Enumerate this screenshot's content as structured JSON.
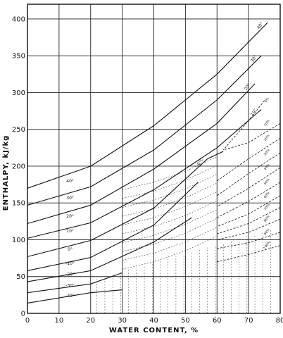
{
  "chart_data": {
    "type": "line",
    "title": "",
    "xlabel": "WATER CONTENT, %",
    "ylabel": "ENTHALPY, kJ/kg",
    "xlim": [
      0,
      80
    ],
    "ylim": [
      0,
      420
    ],
    "x_ticks": [
      0,
      10,
      20,
      30,
      40,
      50,
      60,
      70,
      80
    ],
    "y_ticks": [
      0,
      50,
      100,
      150,
      200,
      250,
      300,
      350,
      400
    ],
    "grid": true,
    "temperature_isotherms": [
      {
        "label": "40°",
        "points": [
          [
            0,
            170
          ],
          [
            20,
            200
          ],
          [
            40,
            255
          ],
          [
            60,
            325
          ],
          [
            76,
            395
          ]
        ]
      },
      {
        "label": "30°",
        "points": [
          [
            0,
            147
          ],
          [
            20,
            172
          ],
          [
            40,
            222
          ],
          [
            60,
            290
          ],
          [
            74,
            350
          ]
        ]
      },
      {
        "label": "20°",
        "points": [
          [
            0,
            122
          ],
          [
            20,
            147
          ],
          [
            40,
            196
          ],
          [
            60,
            258
          ],
          [
            72,
            312
          ]
        ]
      },
      {
        "label": "10°",
        "points": [
          [
            0,
            102
          ],
          [
            20,
            123
          ],
          [
            40,
            168
          ],
          [
            60,
            225
          ],
          [
            74,
            277
          ]
        ]
      },
      {
        "label": "0°C",
        "points": [
          [
            0,
            77
          ],
          [
            20,
            99
          ],
          [
            40,
            143
          ],
          [
            57,
            210
          ],
          [
            62,
            220
          ]
        ]
      },
      {
        "label": "-10°",
        "points": [
          [
            0,
            58
          ],
          [
            20,
            76
          ],
          [
            40,
            120
          ],
          [
            54,
            178
          ]
        ]
      },
      {
        "label": "-20°",
        "points": [
          [
            0,
            43
          ],
          [
            20,
            58
          ],
          [
            40,
            97
          ],
          [
            52,
            130
          ]
        ]
      },
      {
        "label": "-30°",
        "points": [
          [
            0,
            28
          ],
          [
            20,
            40
          ],
          [
            30,
            55
          ]
        ]
      },
      {
        "label": "-40°",
        "points": [
          [
            0,
            14
          ],
          [
            20,
            28
          ],
          [
            30,
            32
          ]
        ]
      }
    ],
    "frozen_fraction_lines": [
      {
        "label": "0%",
        "points": [
          [
            75,
            289
          ],
          [
            70,
            262
          ],
          [
            62,
            222
          ]
        ]
      },
      {
        "label": "10%",
        "points": [
          [
            80,
            258
          ],
          [
            70,
            232
          ],
          [
            62,
            222
          ]
        ]
      },
      {
        "label": "20%",
        "points": [
          [
            80,
            238
          ],
          [
            70,
            210
          ],
          [
            60,
            180
          ]
        ]
      },
      {
        "label": "30%",
        "points": [
          [
            80,
            218
          ],
          [
            70,
            190
          ],
          [
            60,
            160
          ]
        ]
      },
      {
        "label": "40%",
        "points": [
          [
            80,
            198
          ],
          [
            70,
            170
          ],
          [
            60,
            145
          ]
        ]
      },
      {
        "label": "50%",
        "points": [
          [
            80,
            178
          ],
          [
            70,
            152
          ],
          [
            60,
            130
          ]
        ]
      },
      {
        "label": "60%",
        "points": [
          [
            80,
            160
          ],
          [
            70,
            135
          ],
          [
            60,
            118
          ]
        ]
      },
      {
        "label": "70%",
        "points": [
          [
            80,
            144
          ],
          [
            70,
            122
          ],
          [
            60,
            108
          ]
        ]
      },
      {
        "label": "80%",
        "points": [
          [
            80,
            128
          ],
          [
            70,
            110
          ],
          [
            60,
            100
          ]
        ]
      },
      {
        "label": "90%",
        "points": [
          [
            80,
            110
          ],
          [
            70,
            96
          ],
          [
            60,
            88
          ]
        ]
      },
      {
        "label": "100%",
        "points": [
          [
            80,
            92
          ],
          [
            70,
            80
          ],
          [
            60,
            70
          ]
        ]
      }
    ],
    "annotations": {
      "temp_labels_left": [
        "40°",
        "30°",
        "20°",
        "10°",
        "0°",
        "-10°",
        "-20°",
        "-30°",
        "-40°"
      ],
      "temp_labels_top": [
        "40°",
        "30°",
        "20°",
        "10°",
        "0°C"
      ],
      "percent_labels": [
        "0%",
        "10%",
        "20%",
        "30%",
        "40%",
        "50%",
        "60%",
        "70%",
        "80%",
        "90%",
        "100%"
      ]
    }
  }
}
